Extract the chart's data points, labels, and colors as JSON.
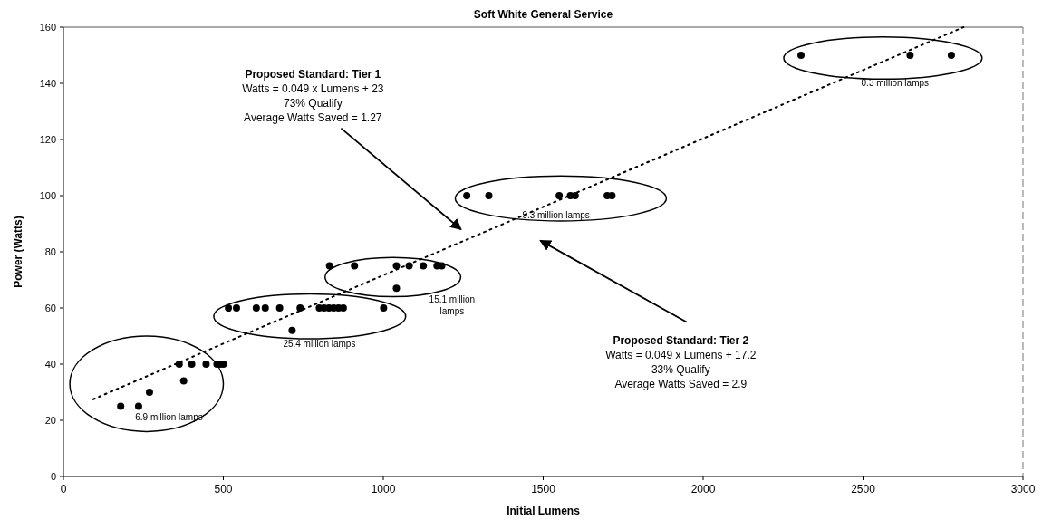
{
  "chart_data": {
    "type": "scatter",
    "title": "Soft White General Service",
    "xlabel": "Initial Lumens",
    "ylabel": "Power (Watts)",
    "xlim": [
      0,
      3000
    ],
    "xticks": [
      0,
      500,
      1000,
      1500,
      2000,
      2500,
      3000
    ],
    "ylim": [
      0,
      160
    ],
    "yticks": [
      0,
      20,
      40,
      60,
      80,
      100,
      120,
      140,
      160
    ],
    "grid": false,
    "marker": "circle",
    "series": [
      {
        "color": "#000000",
        "x": [
          179,
          235,
          269,
          376,
          362,
          401,
          446,
          480,
          490,
          500,
          516,
          541,
          603,
          631,
          676,
          740,
          800,
          815,
          830,
          845,
          860,
          875,
          1001,
          715,
          832,
          910,
          1041,
          1081,
          1125,
          1168,
          1183,
          1041,
          1261,
          1330,
          1550,
          1585,
          1600,
          1700,
          1715,
          2306,
          2647,
          2776
        ],
        "values": [
          25,
          25,
          30,
          34,
          40,
          40,
          40,
          40,
          40,
          40,
          60,
          60,
          60,
          60,
          60,
          60,
          60,
          60,
          60,
          60,
          60,
          60,
          60,
          52,
          75,
          75,
          75,
          75,
          75,
          75,
          75,
          67,
          100,
          100,
          100,
          100,
          100,
          100,
          100,
          150,
          150,
          150
        ]
      },
      {
        "type": "line",
        "color": "#000000",
        "line_style": "dotted",
        "marker": "none",
        "x": [
          93,
          2814
        ],
        "values": [
          27.5,
          160
        ]
      }
    ],
    "annotations": [
      "6.9 million lamps",
      "25.4 million lamps",
      "15.1 million\nlamps",
      "9.3 million lamps",
      "0.3 million lamps",
      "Proposed Standard: Tier 1\nWatts = 0.049 x Lumens + 23\n73% Qualify\nAverage Watts Saved = 1.27",
      "Proposed Standard: Tier 2\nWatts = 0.049 x Lumens + 17.2\n33% Qualify\nAverage Watts Saved = 2.9"
    ]
  }
}
